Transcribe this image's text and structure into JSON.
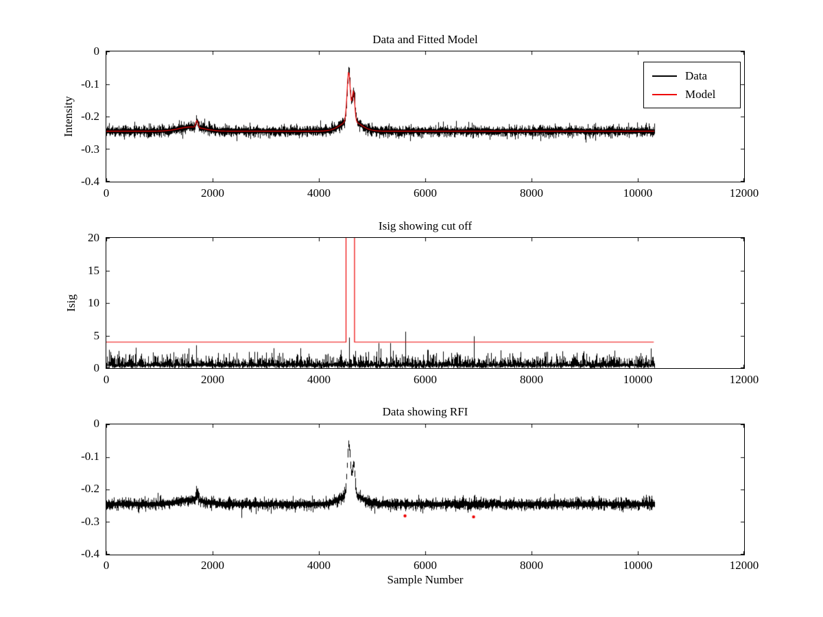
{
  "figure": {
    "background": "#ffffff",
    "axis_color": "#000000"
  },
  "chart_data": [
    {
      "type": "line",
      "title": "Data and Fitted Model",
      "xlabel": "",
      "ylabel": "Intensity",
      "xlim": [
        0,
        12000
      ],
      "ylim": [
        -0.4,
        0
      ],
      "xticks": [
        0,
        2000,
        4000,
        6000,
        8000,
        10000,
        12000
      ],
      "yticks": [
        0,
        -0.1,
        -0.2,
        -0.3,
        -0.4
      ],
      "grid": false,
      "legend": {
        "position": "northeast",
        "entries": [
          {
            "label": "Data",
            "color": "#000000"
          },
          {
            "label": "Model",
            "color": "#ee0000"
          }
        ]
      },
      "series": [
        {
          "name": "Data",
          "color": "#000000",
          "style": "noisy",
          "x_range": [
            0,
            10300
          ],
          "baseline": -0.245,
          "noise_sigma": 0.009,
          "features": [
            {
              "center": 1600,
              "sigma": 230,
              "amp": 0.013
            },
            {
              "center": 1705,
              "sigma": 20,
              "amp": 0.021
            },
            {
              "center": 4560,
              "sigma": 30,
              "amp": 0.15
            },
            {
              "center": 4650,
              "sigma": 24,
              "amp": 0.09
            },
            {
              "center": 4600,
              "sigma": 185,
              "amp": 0.033
            }
          ]
        },
        {
          "name": "Model",
          "color": "#ee0000",
          "style": "smooth",
          "x_range": [
            0,
            10300
          ],
          "baseline": -0.245,
          "features": [
            {
              "center": 1600,
              "sigma": 230,
              "amp": 0.013
            },
            {
              "center": 1705,
              "sigma": 20,
              "amp": 0.021
            },
            {
              "center": 4560,
              "sigma": 30,
              "amp": 0.15
            },
            {
              "center": 4650,
              "sigma": 24,
              "amp": 0.09
            },
            {
              "center": 4600,
              "sigma": 185,
              "amp": 0.033
            }
          ]
        }
      ]
    },
    {
      "type": "line",
      "title": "Isig showing cut off",
      "xlabel": "",
      "ylabel": "Isig",
      "xlim": [
        0,
        12000
      ],
      "ylim": [
        0,
        20
      ],
      "xticks": [
        0,
        2000,
        4000,
        6000,
        8000,
        10000,
        12000
      ],
      "yticks": [
        0,
        5,
        10,
        15,
        20
      ],
      "grid": false,
      "series": [
        {
          "name": "Isig",
          "color": "#000000",
          "style": "noisy-positive",
          "x_range": [
            0,
            10300
          ],
          "typical_range": [
            0,
            3
          ],
          "spikes": [
            [
              4570,
              4.7
            ],
            [
              5620,
              5.6
            ],
            [
              6910,
              4.9
            ]
          ]
        },
        {
          "name": "Cut off",
          "color": "#ee0000",
          "style": "cutoff",
          "level": 4,
          "excursion_x": [
            4510,
            4670
          ],
          "x_range": [
            0,
            10300
          ]
        }
      ]
    },
    {
      "type": "line",
      "title": "Data showing RFI",
      "xlabel": "Sample Number",
      "ylabel": "",
      "xlim": [
        0,
        12000
      ],
      "ylim": [
        -0.4,
        0
      ],
      "xticks": [
        0,
        2000,
        4000,
        6000,
        8000,
        10000,
        12000
      ],
      "yticks": [
        0,
        -0.1,
        -0.2,
        -0.3,
        -0.4
      ],
      "grid": false,
      "series": [
        {
          "name": "Data",
          "color": "#000000",
          "style": "noisy",
          "x_range": [
            0,
            10300
          ],
          "baseline": -0.245,
          "noise_sigma": 0.009,
          "features": [
            {
              "center": 1600,
              "sigma": 230,
              "amp": 0.013
            },
            {
              "center": 1705,
              "sigma": 20,
              "amp": 0.021
            },
            {
              "center": 4560,
              "sigma": 30,
              "amp": 0.15
            },
            {
              "center": 4650,
              "sigma": 24,
              "amp": 0.09
            },
            {
              "center": 4600,
              "sigma": 185,
              "amp": 0.033
            }
          ]
        },
        {
          "name": "RFI flagged",
          "color": "#ee0000",
          "style": "points",
          "points": [
            [
              5620,
              -0.281
            ],
            [
              6910,
              -0.284
            ]
          ]
        }
      ]
    }
  ]
}
